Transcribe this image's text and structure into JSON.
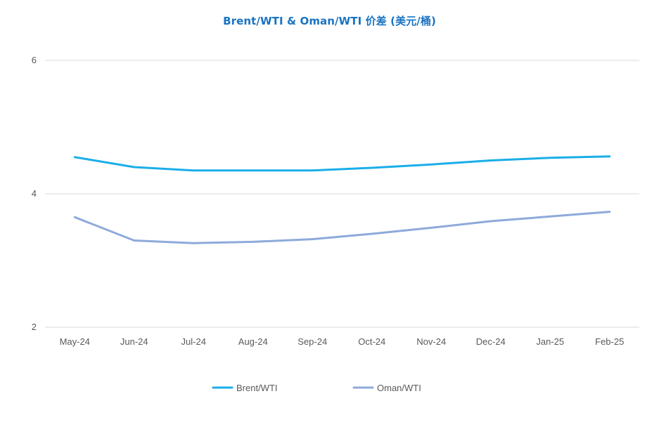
{
  "chart_data": {
    "type": "line",
    "title": "Brent/WTI & Oman/WTI 价差 (美元/桶)",
    "xlabel": "",
    "ylabel": "",
    "categories": [
      "May-24",
      "Jun-24",
      "Jul-24",
      "Aug-24",
      "Sep-24",
      "Oct-24",
      "Nov-24",
      "Dec-24",
      "Jan-25",
      "Feb-25"
    ],
    "ylim": [
      2,
      6
    ],
    "yticks": [
      2,
      4,
      6
    ],
    "grid": true,
    "legend_position": "bottom",
    "series": [
      {
        "name": "Brent/WTI",
        "color": "#1aaee8",
        "values": [
          4.55,
          4.4,
          4.35,
          4.35,
          4.35,
          4.39,
          4.44,
          4.5,
          4.54,
          4.56
        ]
      },
      {
        "name": "Oman/WTI",
        "color": "#8eaadb",
        "values": [
          3.65,
          3.3,
          3.26,
          3.28,
          3.32,
          3.4,
          3.49,
          3.59,
          3.66,
          3.73
        ]
      }
    ]
  }
}
